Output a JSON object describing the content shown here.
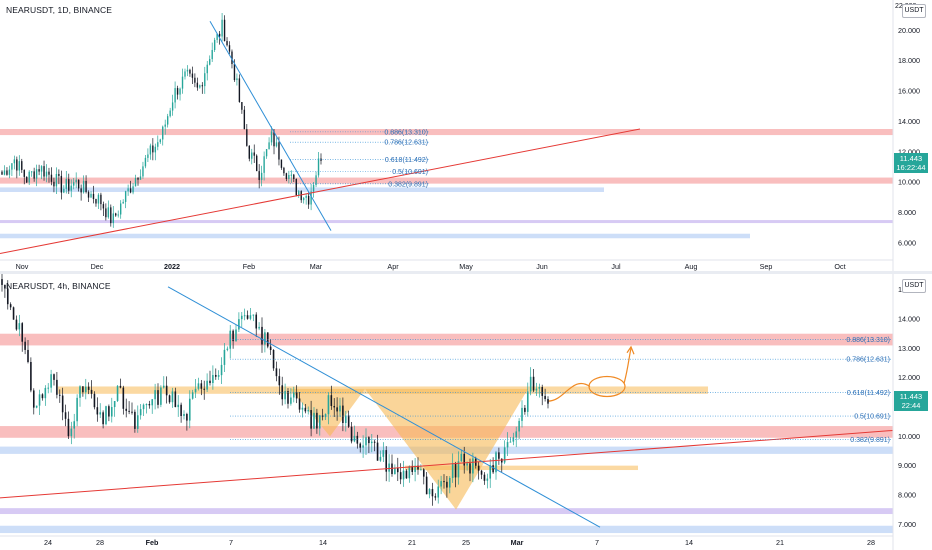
{
  "top": {
    "symbol": "NEARUSDT, 1D, BINANCE",
    "unit": "USDT",
    "price": "11.443",
    "countdown": "16:22:44",
    "yticks": [
      {
        "label": "20.000",
        "v": 20
      },
      {
        "label": "18.000",
        "v": 18
      },
      {
        "label": "16.000",
        "v": 16
      },
      {
        "label": "14.000",
        "v": 14
      },
      {
        "label": "12.000",
        "v": 12
      },
      {
        "label": "10.000",
        "v": 10
      },
      {
        "label": "8.000",
        "v": 8
      },
      {
        "label": "6.000",
        "v": 6
      }
    ],
    "top_label": "22.000",
    "xticks": [
      "Nov",
      "Dec",
      "2022",
      "Feb",
      "Mar",
      "Apr",
      "May",
      "Jun",
      "Jul",
      "Aug",
      "Sep",
      "Oct"
    ],
    "fib": [
      {
        "label": "0.886(13.310)",
        "v": 13.31
      },
      {
        "label": "0.786(12.631)",
        "v": 12.631
      },
      {
        "label": "0.618(11.492)",
        "v": 11.492
      },
      {
        "label": "0.5(10.691)",
        "v": 10.691
      },
      {
        "label": "0.382(9.891)",
        "v": 9.891
      }
    ]
  },
  "bottom": {
    "symbol": "NEARUSDT, 4h, BINANCE",
    "unit": "USDT",
    "price": "11.443",
    "countdown": "22:44",
    "yticks": [
      {
        "label": "15.000",
        "v": 15
      },
      {
        "label": "14.000",
        "v": 14
      },
      {
        "label": "13.000",
        "v": 13
      },
      {
        "label": "12.000",
        "v": 12
      },
      {
        "label": "11.000",
        "v": 11
      },
      {
        "label": "10.000",
        "v": 10
      },
      {
        "label": "9.000",
        "v": 9
      },
      {
        "label": "8.000",
        "v": 8
      },
      {
        "label": "7.000",
        "v": 7
      }
    ],
    "xticks": [
      "24",
      "28",
      "Feb",
      "7",
      "14",
      "21",
      "25",
      "Mar",
      "7",
      "14",
      "21",
      "28"
    ],
    "fib": [
      {
        "label": "0.886(13.310)",
        "v": 13.31
      },
      {
        "label": "0.786(12.631)",
        "v": 12.631
      },
      {
        "label": "0.618(11.492)",
        "v": 11.492
      },
      {
        "label": "0.5(10.691)",
        "v": 10.691
      },
      {
        "label": "0.382(9.891)",
        "v": 9.891
      }
    ]
  },
  "chart_data": [
    {
      "type": "candlestick",
      "title": "NEARUSDT, 1D, BINANCE",
      "ylim": [
        5,
        22
      ],
      "x_labels": [
        "Nov",
        "Dec",
        "2022",
        "Feb",
        "Mar",
        "Apr",
        "May",
        "Jun",
        "Jul",
        "Aug",
        "Sep",
        "Oct"
      ],
      "close_path": [
        10.5,
        11.5,
        10.2,
        11.0,
        10.4,
        9.6,
        10.0,
        9.3,
        8.8,
        7.4,
        9.0,
        10.5,
        11.8,
        13.0,
        15.8,
        17.0,
        16.0,
        18.6,
        20.3,
        17.0,
        12.2,
        10.6,
        13.0,
        11.0,
        9.5,
        9.0,
        11.8
      ],
      "last_price": 11.443,
      "zones": [
        {
          "low": 13.1,
          "high": 13.5,
          "color": "#f7a8a8"
        },
        {
          "low": 9.9,
          "high": 10.3,
          "color": "#f7a8a8"
        },
        {
          "low": 9.35,
          "high": 9.65,
          "color": "#bcd3f5"
        },
        {
          "low": 7.35,
          "high": 7.5,
          "color": "#c9b8f0"
        },
        {
          "low": 6.3,
          "high": 6.6,
          "color": "#bcd3f5"
        }
      ],
      "fib_levels": [
        13.31,
        12.631,
        11.492,
        10.691,
        9.891
      ]
    },
    {
      "type": "candlestick",
      "title": "NEARUSDT, 4h, BINANCE",
      "ylim": [
        6.6,
        15.4
      ],
      "x_labels": [
        "24",
        "28",
        "Feb",
        "7",
        "14",
        "21",
        "25",
        "Mar",
        "7",
        "14",
        "21",
        "28"
      ],
      "close_path": [
        15.2,
        13.8,
        11.0,
        12.0,
        10.3,
        11.8,
        10.4,
        11.5,
        10.4,
        11.2,
        11.6,
        10.6,
        11.8,
        12.3,
        13.6,
        14.0,
        13.2,
        11.5,
        11.0,
        10.4,
        11.4,
        10.2,
        9.8,
        9.3,
        8.6,
        9.1,
        7.7,
        8.6,
        9.2,
        8.6,
        9.2,
        10.2,
        11.8,
        11.3
      ],
      "last_price": 11.443,
      "zones": [
        {
          "low": 13.1,
          "high": 13.5,
          "color": "#f7a8a8"
        },
        {
          "low": 9.95,
          "high": 10.35,
          "color": "#f7a8a8"
        },
        {
          "low": 9.4,
          "high": 9.65,
          "color": "#bcd3f5"
        },
        {
          "low": 7.35,
          "high": 7.55,
          "color": "#c9b8f0"
        },
        {
          "low": 6.7,
          "high": 6.95,
          "color": "#bcd3f5"
        }
      ],
      "fib_levels": [
        13.31,
        12.631,
        11.492,
        10.691,
        9.891
      ]
    }
  ],
  "colors": {
    "up": "#26a69a",
    "down": "#131722",
    "zone_red": "#f7a8a8",
    "zone_blue": "#bcd3f5",
    "zone_purple": "#c9b8f0",
    "orange": "#f7b955",
    "trend_blue": "#2f8fd6",
    "trend_red": "#e53935",
    "fib": "#2f8fd6"
  }
}
